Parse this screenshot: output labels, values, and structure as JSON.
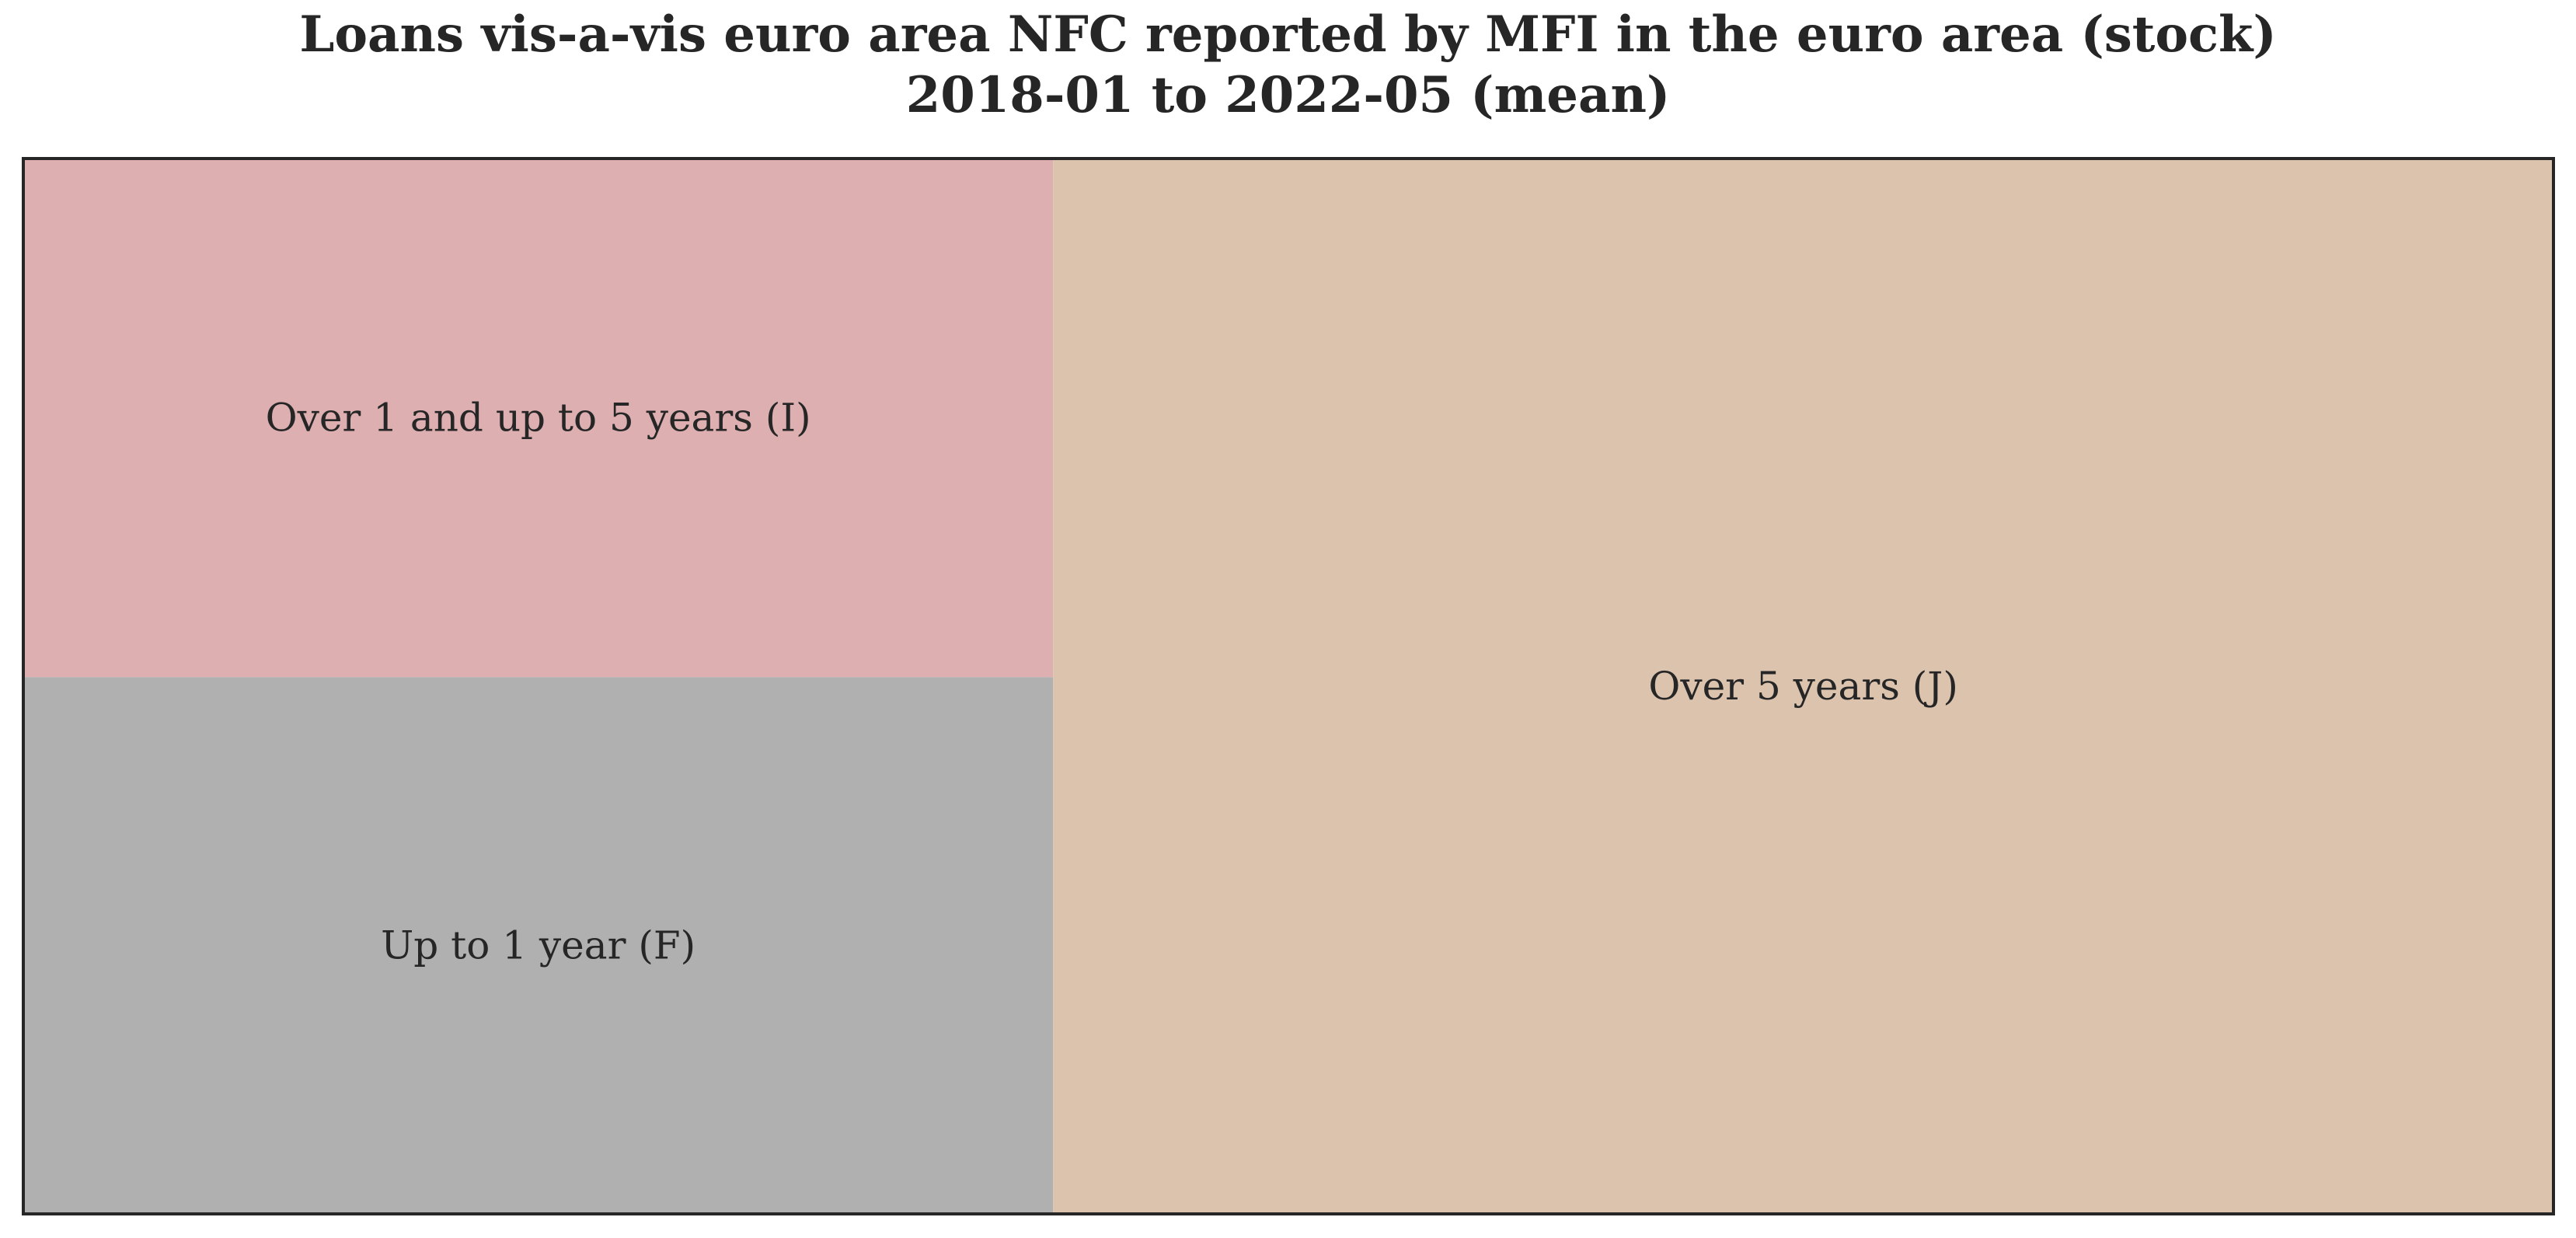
{
  "chart_data": {
    "type": "treemap",
    "title": "Loans vis-a-vis euro area NFC reported by MFI in the euro area (stock)",
    "subtitle": "2018-01 to 2022-05 (mean)",
    "tiles": [
      {
        "label": "Over 5 years (J)",
        "value": 59.3,
        "color": "#dcc3ad"
      },
      {
        "label": "Over 1 and up to 5 years (I)",
        "value": 20.0,
        "color": "#ddafb0"
      },
      {
        "label": "Up to 1 year (F)",
        "value": 20.7,
        "color": "#b0b0b0"
      }
    ]
  }
}
